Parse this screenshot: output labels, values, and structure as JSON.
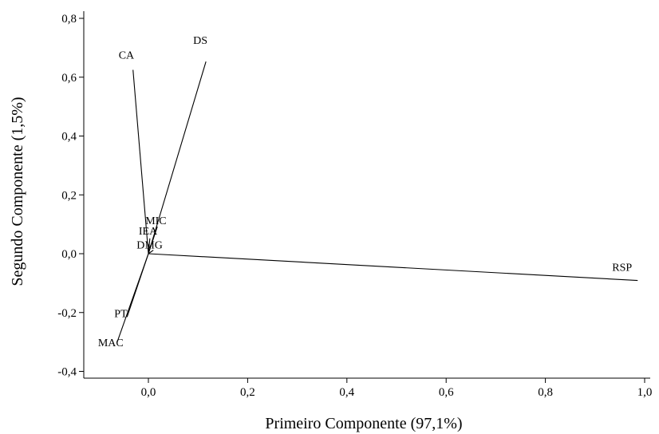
{
  "chart_data": {
    "type": "biplot",
    "xlabel": "Primeiro Componente (97,1%)",
    "ylabel": "Segundo Componente (1,5%)",
    "xlim": [
      -0.13,
      1.03
    ],
    "ylim": [
      -0.43,
      0.82
    ],
    "x_ticks": [
      {
        "value": 0.0,
        "label": "0,0"
      },
      {
        "value": 0.2,
        "label": "0,2"
      },
      {
        "value": 0.4,
        "label": "0,4"
      },
      {
        "value": 0.6,
        "label": "0,6"
      },
      {
        "value": 0.8,
        "label": "0,8"
      },
      {
        "value": 1.0,
        "label": "1,0"
      }
    ],
    "y_ticks": [
      {
        "value": -0.4,
        "label": "-0,4"
      },
      {
        "value": -0.2,
        "label": "-0,2"
      },
      {
        "value": 0.0,
        "label": "0,0"
      },
      {
        "value": 0.2,
        "label": "0,2"
      },
      {
        "value": 0.4,
        "label": "0,4"
      },
      {
        "value": 0.6,
        "label": "0,6"
      },
      {
        "value": 0.8,
        "label": "0,8"
      }
    ],
    "vectors": [
      {
        "name": "CA",
        "x": -0.031,
        "y": 0.625
      },
      {
        "name": "DS",
        "x": 0.116,
        "y": 0.653
      },
      {
        "name": "MIC",
        "x": 0.018,
        "y": 0.092
      },
      {
        "name": "IEA",
        "x": 0.003,
        "y": 0.052
      },
      {
        "name": "DMG",
        "x": 0.01,
        "y": 0.012
      },
      {
        "name": "RSP",
        "x": 0.986,
        "y": -0.091
      },
      {
        "name": "PT",
        "x": -0.043,
        "y": -0.215
      },
      {
        "name": "MAC",
        "x": -0.063,
        "y": -0.301
      }
    ]
  }
}
